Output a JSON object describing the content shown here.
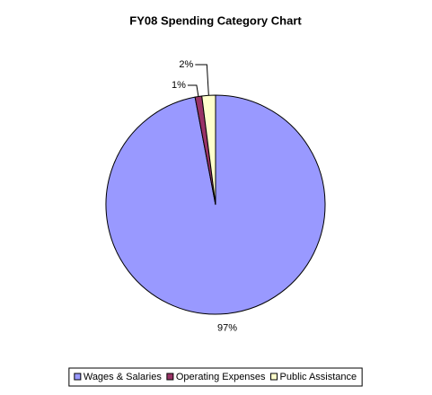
{
  "chart_data": {
    "type": "pie",
    "title": "FY08 Spending Category Chart",
    "categories": [
      "Wages & Salaries",
      "Operating Expenses",
      "Public Assistance"
    ],
    "values": [
      97,
      1,
      2
    ],
    "value_labels": [
      "97%",
      "1%",
      "2%"
    ],
    "colors": [
      "#9999ff",
      "#993366",
      "#ffffcc"
    ],
    "legend": "bottom"
  }
}
